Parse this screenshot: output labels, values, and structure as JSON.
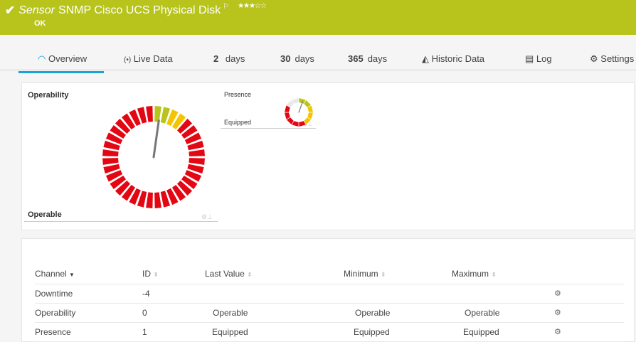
{
  "header": {
    "prefix": "Sensor",
    "title": "SNMP Cisco UCS Physical Disk",
    "status": "OK",
    "priority_stars": "★★★☆☆",
    "priority": 3,
    "color": "#b8c41c"
  },
  "tabs": [
    {
      "label": "Overview",
      "icon": "gauge-icon"
    },
    {
      "label": "Live Data",
      "icon": "broadcast-icon"
    },
    {
      "num": "2",
      "label": "days"
    },
    {
      "num": "30",
      "label": "days"
    },
    {
      "num": "365",
      "label": "days"
    },
    {
      "label": "Historic Data",
      "icon": "area-chart-icon"
    },
    {
      "label": "Log",
      "icon": "list-icon"
    },
    {
      "label": "Settings",
      "icon": "gear-icon"
    }
  ],
  "gauges": [
    {
      "title": "Operability",
      "value_text": "Operable"
    },
    {
      "title": "Presence",
      "value_text": "Equipped"
    }
  ],
  "table": {
    "headers": [
      "Channel",
      "ID",
      "Last Value",
      "Minimum",
      "Maximum"
    ],
    "rows": [
      {
        "channel": "Downtime",
        "id": "-4",
        "last": "",
        "min": "",
        "max": ""
      },
      {
        "channel": "Operability",
        "id": "0",
        "last": "Operable",
        "min": "Operable",
        "max": "Operable"
      },
      {
        "channel": "Presence",
        "id": "1",
        "last": "Equipped",
        "min": "Equipped",
        "max": "Equipped"
      }
    ]
  }
}
